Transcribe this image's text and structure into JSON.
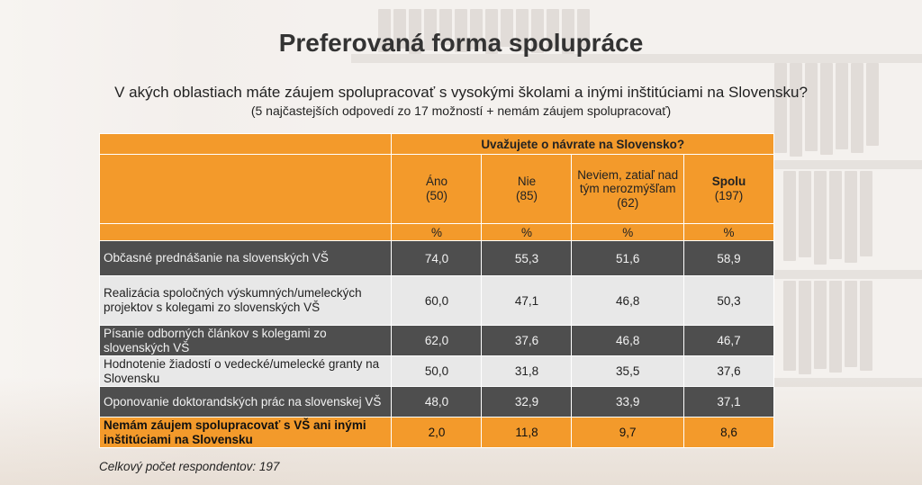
{
  "slide": {
    "title": "Preferovaná forma spolupráce",
    "question": "V akých oblastiach máte záujem spolupracovať s vysokými školami a inými inštitúciami na Slovensku?",
    "subnote": "(5 najčastejších odpovedí zo 17 možností + nemám záujem spolupracovať)",
    "footer": "Celkový počet respondentov: 197"
  },
  "table": {
    "caption": "Uvažujete o návrate na Slovensko?",
    "columns": [
      {
        "label": "Áno",
        "n": "(50)",
        "unit": "%"
      },
      {
        "label": "Nie",
        "n": "(85)",
        "unit": "%"
      },
      {
        "label": "Neviem, zatiaľ nad tým nerozmýšľam",
        "n": "(62)",
        "unit": "%"
      },
      {
        "label": "Spolu",
        "n": "(197)",
        "unit": "%"
      }
    ],
    "rows": [
      {
        "label": "Občasné prednášanie na slovenských VŠ",
        "values": [
          "74,0",
          "55,3",
          "51,6",
          "58,9"
        ]
      },
      {
        "label": "Realizácia spoločných výskumných/umeleckých projektov s kolegami zo slovenských VŠ",
        "values": [
          "60,0",
          "47,1",
          "46,8",
          "50,3"
        ]
      },
      {
        "label": "Písanie odborných článkov s kolegami zo slovenských VŠ",
        "values": [
          "62,0",
          "37,6",
          "46,8",
          "46,7"
        ]
      },
      {
        "label": "Hodnotenie žiadostí o vedecké/umelecké granty na Slovensku",
        "values": [
          "50,0",
          "31,8",
          "35,5",
          "37,6"
        ]
      },
      {
        "label": "Oponovanie doktorandských prác na slovenskej VŠ",
        "values": [
          "48,0",
          "32,9",
          "33,9",
          "37,1"
        ]
      },
      {
        "label": "Nemám záujem spolupracovať s VŠ ani inými inštitúciami na Slovensku",
        "values": [
          "2,0",
          "11,8",
          "9,7",
          "8,6"
        ]
      }
    ]
  },
  "colors": {
    "orange": "#f39a2b",
    "dark_row": "#4e4e4e",
    "light_row": "#e8e8e8"
  }
}
